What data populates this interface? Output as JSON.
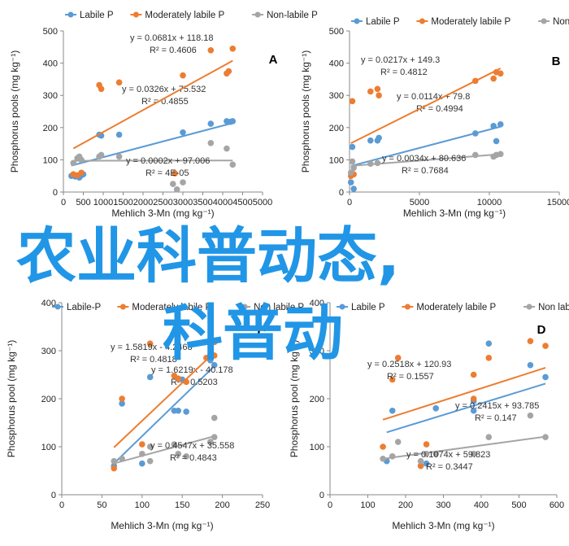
{
  "chart_data": [
    {
      "type": "scatter",
      "panel_label": "A",
      "xlabel": "Mehlich 3-Mn (mg kg⁻¹)",
      "ylabel": "Phosphorus pools (mg kg⁻¹)",
      "xlim": [
        0,
        5000
      ],
      "ylim": [
        0,
        500
      ],
      "xticks": [
        0,
        500,
        1000,
        1500,
        2000,
        2500,
        3000,
        3500,
        4000,
        4500,
        5000
      ],
      "yticks": [
        0,
        100,
        200,
        300,
        400,
        500
      ],
      "legend": "top",
      "series": [
        {
          "name": "Labile P",
          "color": "#5b9bd5",
          "points": [
            [
              200,
              50
            ],
            [
              300,
              48
            ],
            [
              400,
              45
            ],
            [
              450,
              52
            ],
            [
              500,
              55
            ],
            [
              900,
              178
            ],
            [
              950,
              175
            ],
            [
              1400,
              178
            ],
            [
              3000,
              185
            ],
            [
              3700,
              212
            ],
            [
              4100,
              220
            ],
            [
              4200,
              218
            ],
            [
              4250,
              220
            ]
          ],
          "fit": "y = 0.0326x + 75.532",
          "r2": "R² = 0.4855"
        },
        {
          "name": "Moderately labile P",
          "color": "#ed7d31",
          "points": [
            [
              250,
              55
            ],
            [
              350,
              52
            ],
            [
              450,
              60
            ],
            [
              900,
              332
            ],
            [
              950,
              320
            ],
            [
              1400,
              340
            ],
            [
              2800,
              58
            ],
            [
              3000,
              362
            ],
            [
              3700,
              440
            ],
            [
              4100,
              368
            ],
            [
              4150,
              375
            ],
            [
              4250,
              445
            ]
          ],
          "fit": "y = 0.0681x + 118.18",
          "r2": "R² = 0.4606"
        },
        {
          "name": "Non-labile P",
          "color": "#a5a5a5",
          "points": [
            [
              250,
              90
            ],
            [
              350,
              105
            ],
            [
              400,
              110
            ],
            [
              450,
              100
            ],
            [
              900,
              110
            ],
            [
              950,
              115
            ],
            [
              1400,
              110
            ],
            [
              2750,
              25
            ],
            [
              2850,
              8
            ],
            [
              3000,
              30
            ],
            [
              3700,
              152
            ],
            [
              4100,
              135
            ],
            [
              4250,
              85
            ]
          ],
          "fit": "y = 0.0002x + 97.006",
          "r2": "R² = 4E-05"
        }
      ]
    },
    {
      "type": "scatter",
      "panel_label": "B",
      "xlabel": "Mehlich 3-Mn (mg kg⁻¹)",
      "ylabel": "Phosphorus pools (mg kg⁻¹)",
      "xlim": [
        0,
        15000
      ],
      "ylim": [
        0,
        500
      ],
      "xticks": [
        0,
        5000,
        10000,
        15000
      ],
      "yticks": [
        0,
        100,
        200,
        300,
        400,
        500
      ],
      "legend": "top",
      "series": [
        {
          "name": "Labile P",
          "color": "#5b9bd5",
          "points": [
            [
              100,
              30
            ],
            [
              200,
              140
            ],
            [
              300,
              10
            ],
            [
              1500,
              160
            ],
            [
              2000,
              160
            ],
            [
              2100,
              168
            ],
            [
              9000,
              182
            ],
            [
              10300,
              205
            ],
            [
              10500,
              158
            ],
            [
              10800,
              210
            ]
          ],
          "fit": "y = 0.0114x + 79.8",
          "r2": "R² = 0.4994"
        },
        {
          "name": "Moderately labile P",
          "color": "#ed7d31",
          "points": [
            [
              100,
              50
            ],
            [
              200,
              282
            ],
            [
              300,
              55
            ],
            [
              1500,
              312
            ],
            [
              2000,
              320
            ],
            [
              2100,
              300
            ],
            [
              9000,
              345
            ],
            [
              10300,
              352
            ],
            [
              10500,
              372
            ],
            [
              10800,
              368
            ]
          ],
          "fit": "y = 0.0217x + 149.3",
          "r2": "R² = 0.4812"
        },
        {
          "name": "Non-labile P",
          "color": "#a5a5a5",
          "points": [
            [
              100,
              60
            ],
            [
              200,
              95
            ],
            [
              300,
              75
            ],
            [
              1500,
              88
            ],
            [
              2000,
              90
            ],
            [
              9000,
              115
            ],
            [
              10300,
              110
            ],
            [
              10500,
              115
            ],
            [
              10800,
              118
            ]
          ],
          "fit": "y = 0.0034x + 80.636",
          "r2": "R² = 0.7684"
        }
      ]
    },
    {
      "type": "scatter",
      "panel_label": "C",
      "xlabel": "Mehlich 3-Mn (mg kg⁻¹)",
      "ylabel": "Phosphorus pool (mg kg⁻¹)",
      "xlim": [
        0,
        250
      ],
      "ylim": [
        0,
        400
      ],
      "xticks": [
        0,
        50,
        100,
        150,
        200,
        250
      ],
      "yticks": [
        0,
        100,
        200,
        300,
        400
      ],
      "legend": "top",
      "series": [
        {
          "name": "Labile-P",
          "color": "#5b9bd5",
          "points": [
            [
              65,
              60
            ],
            [
              75,
              190
            ],
            [
              100,
              65
            ],
            [
              110,
              245
            ],
            [
              140,
              175
            ],
            [
              145,
              175
            ],
            [
              150,
              240
            ],
            [
              155,
              173
            ],
            [
              185,
              280
            ],
            [
              190,
              270
            ]
          ],
          "fit": "y = 1.6219x - 40.178",
          "r2": "R² = 0.5203"
        },
        {
          "name": "Moderately labile P",
          "color": "#ed7d31",
          "points": [
            [
              65,
              55
            ],
            [
              75,
              200
            ],
            [
              100,
              105
            ],
            [
              110,
              315
            ],
            [
              140,
              248
            ],
            [
              145,
              242
            ],
            [
              155,
              235
            ],
            [
              180,
              285
            ],
            [
              185,
              290
            ],
            [
              190,
              290
            ],
            [
              190,
              318
            ]
          ],
          "fit": "y = 1.5819x - 4.2468",
          "r2": "R² = 0.4818"
        },
        {
          "name": "Non labile P",
          "color": "#a5a5a5",
          "points": [
            [
              65,
              70
            ],
            [
              75,
              75
            ],
            [
              100,
              85
            ],
            [
              110,
              70
            ],
            [
              110,
              100
            ],
            [
              140,
              105
            ],
            [
              145,
              85
            ],
            [
              155,
              80
            ],
            [
              185,
              110
            ],
            [
              190,
              160
            ],
            [
              190,
              120
            ]
          ],
          "fit": "y = 0.4547x + 35.558",
          "r2": "R² = 0.4843"
        }
      ]
    },
    {
      "type": "scatter",
      "panel_label": "D",
      "xlabel": "Mehlich 3-Mn (mg kg⁻¹)",
      "ylabel": "Phosphorus pool (mg kg⁻¹)",
      "xlim": [
        0,
        600
      ],
      "ylim": [
        0,
        400
      ],
      "xticks": [
        0,
        100,
        200,
        300,
        400,
        500,
        600
      ],
      "yticks": [
        0,
        100,
        200,
        300,
        400
      ],
      "legend": "top",
      "series": [
        {
          "name": "Labile P",
          "color": "#5b9bd5",
          "points": [
            [
              150,
              70
            ],
            [
              165,
              175
            ],
            [
              240,
              60
            ],
            [
              255,
              65
            ],
            [
              280,
              180
            ],
            [
              380,
              175
            ],
            [
              380,
              195
            ],
            [
              420,
              315
            ],
            [
              530,
              270
            ],
            [
              570,
              245
            ]
          ],
          "fit": "y = 0.2415x + 93.785",
          "r2": "R² = 0.147"
        },
        {
          "name": "Moderately labile P",
          "color": "#ed7d31",
          "points": [
            [
              140,
              100
            ],
            [
              165,
              240
            ],
            [
              180,
              285
            ],
            [
              240,
              60
            ],
            [
              255,
              105
            ],
            [
              380,
              200
            ],
            [
              380,
              250
            ],
            [
              420,
              285
            ],
            [
              530,
              320
            ],
            [
              570,
              310
            ]
          ],
          "fit": "y = 0.2518x + 120.93",
          "r2": "R² = 0.1557"
        },
        {
          "name": "Non labile P",
          "color": "#a5a5a5",
          "points": [
            [
              140,
              75
            ],
            [
              165,
              80
            ],
            [
              180,
              110
            ],
            [
              240,
              70
            ],
            [
              255,
              85
            ],
            [
              280,
              85
            ],
            [
              380,
              85
            ],
            [
              420,
              120
            ],
            [
              530,
              165
            ],
            [
              570,
              120
            ]
          ],
          "fit": "y = 0.1074x + 59.823",
          "r2": "R² = 0.3447"
        }
      ]
    }
  ],
  "overlay": {
    "line1": "农业科普动态,",
    "line2": "科普动"
  }
}
